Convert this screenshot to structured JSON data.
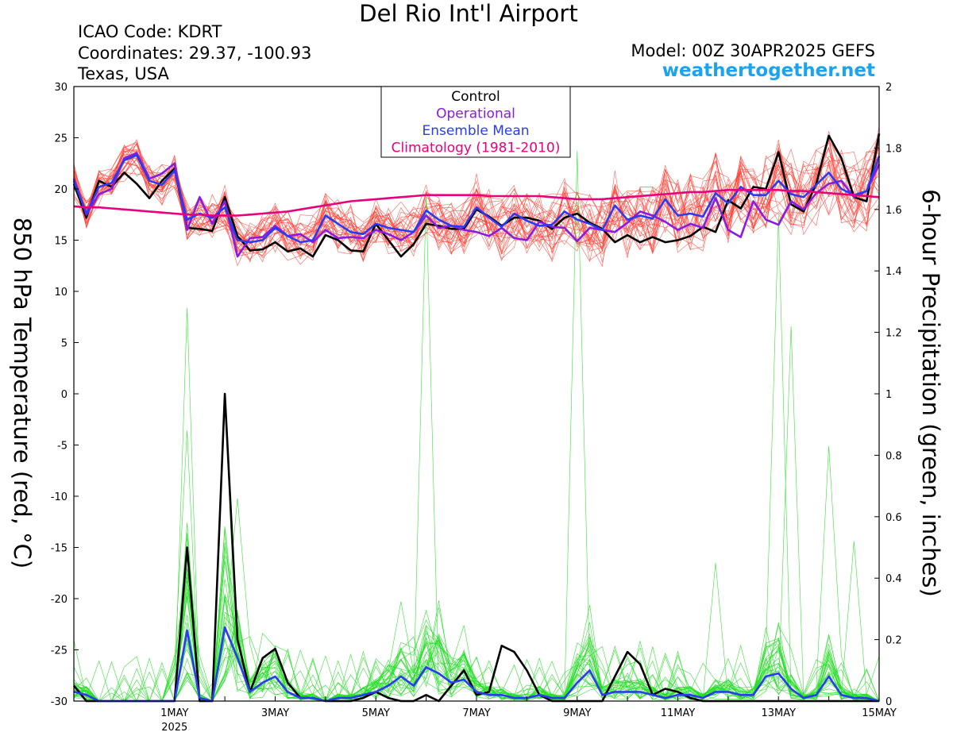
{
  "header": {
    "title": "Del Rio Int'l Airport",
    "icao": "ICAO Code: KDRT",
    "coords": "Coordinates: 29.37, -100.93",
    "location": "Texas, USA",
    "model": "Model: 00Z 30APR2025 GEFS",
    "site": "weathertogether.net"
  },
  "chart_data": {
    "type": "line",
    "title": "Del Rio Int'l Airport",
    "ylabel": "850 hPa Temperature (red, °C)",
    "ylabel2": "6-hour Precipitation (green, inches)",
    "x_ticks": [
      {
        "label": "1MAY",
        "sub": "2025",
        "day": 1
      },
      {
        "label": "3MAY",
        "day": 3
      },
      {
        "label": "5MAY",
        "day": 5
      },
      {
        "label": "7MAY",
        "day": 7
      },
      {
        "label": "9MAY",
        "day": 9
      },
      {
        "label": "11MAY",
        "day": 11
      },
      {
        "label": "13MAY",
        "day": 13
      },
      {
        "label": "15MAY",
        "day": 15
      }
    ],
    "xlim": [
      30.0,
      16.0
    ],
    "ylim": [
      -30,
      30
    ],
    "y_ticks": [
      30,
      25,
      20,
      15,
      10,
      5,
      0,
      -5,
      -10,
      -15,
      -20,
      -25,
      -30
    ],
    "y2lim": [
      0,
      2
    ],
    "y2_ticks": [
      "2",
      "1.8",
      "1.6",
      "1.4",
      "1.2",
      "1",
      "0.8",
      "0.6",
      "0.4",
      "0.2",
      "0"
    ],
    "step_hours": 6,
    "legend": {
      "placement": "top-center",
      "entries": [
        {
          "name": "Control",
          "color": "#000000"
        },
        {
          "name": "Operational",
          "color": "#8a1be0"
        },
        {
          "name": "Ensemble Mean",
          "color": "#2a3bf0"
        },
        {
          "name": "Climatology (1981-2010)",
          "color": "#e6007e"
        }
      ]
    },
    "series": [
      {
        "name": "Control",
        "kind": "temp",
        "color": "#000000",
        "values": [
          20.5,
          17.2,
          20.8,
          20.2,
          21.6,
          20.5,
          19.1,
          20.8,
          22.0,
          16.2,
          16.1,
          15.9,
          19.2,
          15.4,
          14.0,
          14.1,
          14.8,
          13.9,
          14.2,
          13.4,
          15.5,
          15.0,
          14.0,
          13.9,
          16.6,
          15.0,
          13.4,
          14.6,
          16.6,
          16.4,
          16.1,
          16.1,
          18.0,
          17.3,
          16.4,
          17.2,
          17.2,
          16.9,
          16.1,
          17.2,
          17.6,
          16.7,
          16.1,
          14.8,
          15.5,
          14.8,
          15.3,
          14.8,
          15.0,
          15.4,
          16.3,
          15.8,
          18.9,
          18.1,
          20.2,
          20.0,
          23.6,
          18.5,
          17.8,
          20.5,
          25.2,
          23.0,
          19.2,
          18.8,
          25.4
        ]
      },
      {
        "name": "Operational",
        "kind": "temp",
        "color": "#8a1be0",
        "values": [
          21.0,
          17.5,
          19.5,
          20.0,
          23.0,
          23.5,
          21.0,
          21.5,
          22.5,
          16.0,
          19.2,
          16.6,
          18.8,
          13.4,
          15.2,
          15.3,
          16.4,
          15.4,
          15.6,
          14.8,
          16.0,
          15.2,
          15.3,
          15.2,
          16.0,
          15.6,
          15.0,
          15.8,
          17.4,
          16.2,
          16.4,
          16.0,
          15.8,
          15.4,
          16.2,
          15.2,
          15.0,
          16.8,
          16.3,
          16.2,
          14.9,
          16.2,
          16.0,
          15.8,
          16.7,
          17.8,
          17.4,
          16.8,
          16.0,
          16.6,
          16.2,
          19.1,
          16.0,
          15.3,
          18.8,
          17.0,
          16.5,
          18.8,
          18.0,
          19.6,
          20.5,
          20.8,
          19.2,
          19.8,
          22.4
        ]
      },
      {
        "name": "Ensemble Mean",
        "kind": "temp",
        "color": "#2a3bf0",
        "values": [
          20.8,
          17.6,
          20.2,
          20.6,
          22.8,
          23.3,
          20.8,
          20.4,
          21.8,
          17.0,
          17.6,
          17.2,
          18.2,
          15.0,
          14.8,
          15.0,
          16.2,
          15.4,
          14.8,
          15.0,
          17.4,
          16.6,
          15.8,
          15.6,
          16.6,
          16.2,
          16.0,
          15.8,
          17.9,
          17.0,
          16.4,
          16.3,
          18.2,
          17.2,
          16.3,
          17.6,
          16.9,
          16.4,
          16.5,
          17.8,
          17.0,
          16.6,
          16.0,
          18.4,
          17.0,
          17.4,
          17.1,
          19.0,
          17.4,
          17.6,
          17.3,
          19.6,
          18.6,
          20.2,
          19.4,
          19.4,
          20.8,
          19.5,
          19.2,
          20.4,
          21.6,
          20.0,
          19.4,
          19.8,
          23.2
        ]
      },
      {
        "name": "Climatology (1981-2010)",
        "kind": "temp",
        "color": "#e6007e",
        "values": [
          18.3,
          18.2,
          18.2,
          18.1,
          18.0,
          17.9,
          17.8,
          17.7,
          17.6,
          17.5,
          17.5,
          17.4,
          17.4,
          17.4,
          17.5,
          17.6,
          17.7,
          17.8,
          18.0,
          18.2,
          18.4,
          18.6,
          18.8,
          18.9,
          19.0,
          19.1,
          19.2,
          19.3,
          19.4,
          19.4,
          19.4,
          19.4,
          19.4,
          19.3,
          19.3,
          19.3,
          19.3,
          19.3,
          19.2,
          19.1,
          19.0,
          19.0,
          19.0,
          19.1,
          19.2,
          19.3,
          19.4,
          19.5,
          19.6,
          19.7,
          19.7,
          19.8,
          19.9,
          19.9,
          19.9,
          19.9,
          19.9,
          19.8,
          19.8,
          19.7,
          19.6,
          19.5,
          19.4,
          19.3,
          19.2
        ]
      },
      {
        "name": "Control",
        "kind": "precip",
        "color": "#000000",
        "values": [
          0.05,
          0.0,
          0.0,
          0.0,
          0.0,
          0.0,
          0.0,
          0.0,
          0.0,
          0.5,
          0.0,
          0.0,
          1.0,
          0.2,
          0.03,
          0.14,
          0.17,
          0.06,
          0.01,
          0.01,
          0.0,
          0.0,
          0.0,
          0.01,
          0.03,
          0.01,
          0.0,
          0.0,
          0.02,
          0.0,
          0.05,
          0.1,
          0.02,
          0.03,
          0.18,
          0.16,
          0.1,
          0.02,
          0.0,
          0.0,
          0.0,
          0.0,
          0.0,
          0.08,
          0.16,
          0.12,
          0.02,
          0.04,
          0.03,
          0.01,
          0.0,
          0.0,
          0.0,
          0.0,
          0.0,
          0.0,
          0.0,
          0.0,
          0.0,
          0.0,
          0.0,
          0.0,
          0.0,
          0.0,
          0.0
        ]
      },
      {
        "name": "Ensemble Mean",
        "kind": "precip",
        "color": "#2a3bf0",
        "values": [
          0.03,
          0.02,
          0.0,
          0.0,
          0.0,
          0.0,
          0.0,
          0.0,
          0.0,
          0.23,
          0.01,
          0.0,
          0.24,
          0.14,
          0.03,
          0.06,
          0.08,
          0.03,
          0.01,
          0.01,
          0.0,
          0.01,
          0.01,
          0.02,
          0.03,
          0.05,
          0.08,
          0.05,
          0.11,
          0.09,
          0.06,
          0.07,
          0.03,
          0.02,
          0.02,
          0.01,
          0.01,
          0.02,
          0.01,
          0.01,
          0.06,
          0.1,
          0.02,
          0.03,
          0.03,
          0.03,
          0.02,
          0.01,
          0.02,
          0.02,
          0.01,
          0.03,
          0.03,
          0.02,
          0.02,
          0.08,
          0.09,
          0.04,
          0.01,
          0.02,
          0.08,
          0.02,
          0.01,
          0.01,
          0.0
        ]
      }
    ]
  }
}
